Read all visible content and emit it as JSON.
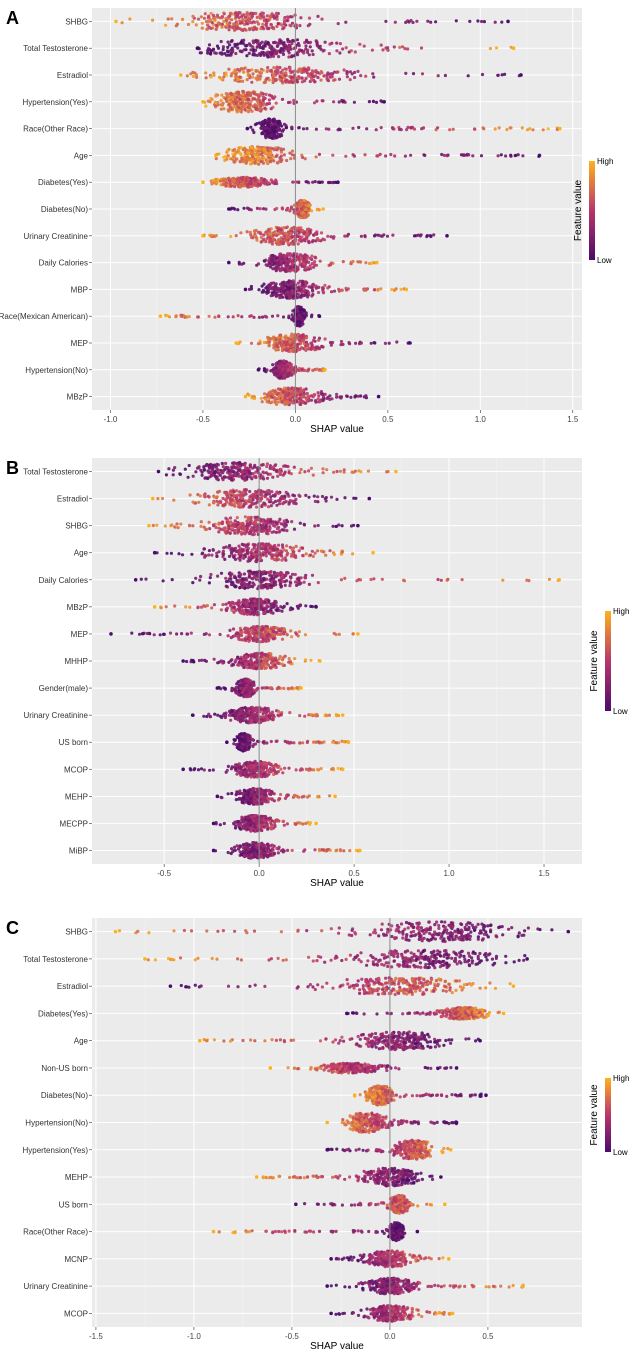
{
  "figure_title": "",
  "colors": {
    "panel_bg": "#EBEBEB",
    "grid_major": "#FFFFFF",
    "zero_line": "#888888",
    "low": "#4A0C6B",
    "mid": "#B8356E",
    "high": "#FCB31B"
  },
  "chart_data": [
    {
      "type": "beeswarm",
      "panel": "A",
      "xlabel": "SHAP value",
      "xlim": [
        -1.1,
        1.55
      ],
      "xticks": [
        -1.0,
        -0.5,
        0.0,
        0.5,
        1.0,
        1.5
      ],
      "xtick_labels": [
        "-1.0",
        "-0.5",
        "0.0",
        "0.5",
        "1.0",
        "1.5"
      ],
      "legend": {
        "title": "Feature value",
        "high": "High",
        "low": "Low"
      },
      "features": [
        {
          "name": "SHBG",
          "lo": -0.97,
          "hi": 1.15,
          "peak": -0.28,
          "w": 0.4,
          "h": 9,
          "low_side": "right"
        },
        {
          "name": "Total Testosterone",
          "lo": -0.53,
          "hi": 1.18,
          "peak": -0.12,
          "w": 0.4,
          "h": 9,
          "low_side": "left"
        },
        {
          "name": "Estradiol",
          "lo": -0.62,
          "hi": 1.22,
          "peak": -0.08,
          "w": 0.42,
          "h": 8,
          "low_side": "right"
        },
        {
          "name": "Hypertension(Yes)",
          "lo": -0.5,
          "hi": 0.48,
          "peak": -0.28,
          "w": 0.16,
          "h": 11,
          "low_side": "right"
        },
        {
          "name": "Race(Other Race)",
          "lo": -0.26,
          "hi": 1.43,
          "peak": -0.13,
          "w": 0.07,
          "h": 10,
          "low_side": "left"
        },
        {
          "name": "Age",
          "lo": -0.43,
          "hi": 1.32,
          "peak": -0.2,
          "w": 0.18,
          "h": 9,
          "low_side": "right"
        },
        {
          "name": "Diabetes(Yes)",
          "lo": -0.5,
          "hi": 0.23,
          "peak": -0.28,
          "w": 0.14,
          "h": 5,
          "low_side": "right"
        },
        {
          "name": "Diabetes(No)",
          "lo": -0.36,
          "hi": 0.15,
          "peak": 0.04,
          "w": 0.04,
          "h": 9,
          "low_side": "left"
        },
        {
          "name": "Urinary Creatinine",
          "lo": -0.5,
          "hi": 0.82,
          "peak": -0.05,
          "w": 0.18,
          "h": 9,
          "low_side": "right"
        },
        {
          "name": "Daily Calories",
          "lo": -0.36,
          "hi": 0.44,
          "peak": -0.03,
          "w": 0.15,
          "h": 9,
          "low_side": "left"
        },
        {
          "name": "MBP",
          "lo": -0.27,
          "hi": 0.6,
          "peak": -0.02,
          "w": 0.15,
          "h": 9,
          "low_side": "left"
        },
        {
          "name": "Race(Mexican American)",
          "lo": -0.73,
          "hi": 0.13,
          "peak": 0.02,
          "w": 0.03,
          "h": 10,
          "low_side": "right"
        },
        {
          "name": "MEP",
          "lo": -0.32,
          "hi": 0.62,
          "peak": -0.01,
          "w": 0.15,
          "h": 9,
          "low_side": "right"
        },
        {
          "name": "Hypertension(No)",
          "lo": -0.2,
          "hi": 0.16,
          "peak": -0.07,
          "w": 0.05,
          "h": 9,
          "low_side": "left"
        },
        {
          "name": "MBzP",
          "lo": -0.27,
          "hi": 0.45,
          "peak": -0.02,
          "w": 0.15,
          "h": 9,
          "low_side": "right"
        }
      ]
    },
    {
      "type": "beeswarm",
      "panel": "B",
      "xlabel": "SHAP value",
      "xlim": [
        -0.88,
        1.7
      ],
      "xticks": [
        -0.5,
        0.0,
        0.5,
        1.0,
        1.5
      ],
      "xtick_labels": [
        "-0.5",
        "0.0",
        "0.5",
        "1.0",
        "1.5"
      ],
      "legend": {
        "title": "Feature value",
        "high": "High",
        "low": "Low"
      },
      "features": [
        {
          "name": "Total Testosterone",
          "lo": -0.53,
          "hi": 0.72,
          "peak": -0.1,
          "w": 0.3,
          "h": 9,
          "low_side": "left"
        },
        {
          "name": "Estradiol",
          "lo": -0.56,
          "hi": 0.58,
          "peak": -0.05,
          "w": 0.25,
          "h": 9,
          "low_side": "right"
        },
        {
          "name": "SHBG",
          "lo": -0.58,
          "hi": 0.52,
          "peak": -0.05,
          "w": 0.22,
          "h": 9,
          "low_side": "right"
        },
        {
          "name": "Age",
          "lo": -0.55,
          "hi": 0.6,
          "peak": 0.0,
          "w": 0.25,
          "h": 9,
          "low_side": "left"
        },
        {
          "name": "Daily Calories",
          "lo": -0.65,
          "hi": 1.58,
          "peak": 0.0,
          "w": 0.25,
          "h": 9,
          "low_side": "left"
        },
        {
          "name": "MBzP",
          "lo": -0.55,
          "hi": 0.3,
          "peak": -0.02,
          "w": 0.14,
          "h": 8,
          "low_side": "right"
        },
        {
          "name": "MEP",
          "lo": -0.78,
          "hi": 0.52,
          "peak": 0.0,
          "w": 0.14,
          "h": 8,
          "low_side": "left"
        },
        {
          "name": "MHHP",
          "lo": -0.4,
          "hi": 0.32,
          "peak": 0.0,
          "w": 0.14,
          "h": 8,
          "low_side": "left"
        },
        {
          "name": "Gender(male)",
          "lo": -0.22,
          "hi": 0.22,
          "peak": -0.07,
          "w": 0.05,
          "h": 9,
          "low_side": "left"
        },
        {
          "name": "Urinary Creatinine",
          "lo": -0.35,
          "hi": 0.44,
          "peak": -0.03,
          "w": 0.14,
          "h": 8,
          "low_side": "left"
        },
        {
          "name": "US born",
          "lo": -0.17,
          "hi": 0.47,
          "peak": -0.08,
          "w": 0.04,
          "h": 9,
          "low_side": "left"
        },
        {
          "name": "MCOP",
          "lo": -0.4,
          "hi": 0.44,
          "peak": -0.02,
          "w": 0.12,
          "h": 8,
          "low_side": "left"
        },
        {
          "name": "MEHP",
          "lo": -0.22,
          "hi": 0.4,
          "peak": -0.02,
          "w": 0.1,
          "h": 8,
          "low_side": "left"
        },
        {
          "name": "MECPP",
          "lo": -0.24,
          "hi": 0.3,
          "peak": -0.02,
          "w": 0.1,
          "h": 8,
          "low_side": "left"
        },
        {
          "name": "MiBP",
          "lo": -0.24,
          "hi": 0.53,
          "peak": -0.02,
          "w": 0.1,
          "h": 8,
          "low_side": "left"
        }
      ]
    },
    {
      "type": "beeswarm",
      "panel": "C",
      "xlabel": "SHAP value",
      "xlim": [
        -1.52,
        0.98
      ],
      "xticks": [
        -1.5,
        -1.0,
        -0.5,
        0.0,
        0.5
      ],
      "xtick_labels": [
        "-1.5",
        "-1.0",
        "-0.5",
        "0.0",
        "0.5"
      ],
      "legend": {
        "title": "Feature value",
        "high": "High",
        "low": "Low"
      },
      "features": [
        {
          "name": "SHBG",
          "lo": -1.4,
          "hi": 0.91,
          "peak": 0.25,
          "w": 0.4,
          "h": 10,
          "low_side": "right"
        },
        {
          "name": "Total Testosterone",
          "lo": -1.25,
          "hi": 0.7,
          "peak": 0.2,
          "w": 0.4,
          "h": 9,
          "low_side": "right"
        },
        {
          "name": "Estradiol",
          "lo": -1.12,
          "hi": 0.63,
          "peak": 0.05,
          "w": 0.35,
          "h": 9,
          "low_side": "left"
        },
        {
          "name": "Diabetes(Yes)",
          "lo": -0.22,
          "hi": 0.58,
          "peak": 0.38,
          "w": 0.12,
          "h": 6,
          "low_side": "left"
        },
        {
          "name": "Age",
          "lo": -0.97,
          "hi": 0.46,
          "peak": 0.05,
          "w": 0.22,
          "h": 9,
          "low_side": "right"
        },
        {
          "name": "Non-US born",
          "lo": -0.61,
          "hi": 0.34,
          "peak": -0.2,
          "w": 0.16,
          "h": 5,
          "low_side": "right"
        },
        {
          "name": "Diabetes(No)",
          "lo": -0.18,
          "hi": 0.49,
          "peak": -0.05,
          "w": 0.06,
          "h": 10,
          "low_side": "right"
        },
        {
          "name": "Hypertension(No)",
          "lo": -0.32,
          "hi": 0.34,
          "peak": -0.12,
          "w": 0.1,
          "h": 10,
          "low_side": "right"
        },
        {
          "name": "Hypertension(Yes)",
          "lo": -0.32,
          "hi": 0.31,
          "peak": 0.12,
          "w": 0.1,
          "h": 10,
          "low_side": "left"
        },
        {
          "name": "MEHP",
          "lo": -0.68,
          "hi": 0.26,
          "peak": 0.0,
          "w": 0.14,
          "h": 9,
          "low_side": "right"
        },
        {
          "name": "US born",
          "lo": -0.48,
          "hi": 0.28,
          "peak": 0.05,
          "w": 0.05,
          "h": 9,
          "low_side": "left"
        },
        {
          "name": "Race(Other Race)",
          "lo": -0.9,
          "hi": 0.14,
          "peak": 0.03,
          "w": 0.04,
          "h": 9,
          "low_side": "right"
        },
        {
          "name": "MCNP",
          "lo": -0.3,
          "hi": 0.3,
          "peak": 0.0,
          "w": 0.12,
          "h": 8,
          "low_side": "left"
        },
        {
          "name": "Urinary Creatinine",
          "lo": -0.32,
          "hi": 0.68,
          "peak": 0.0,
          "w": 0.12,
          "h": 8,
          "low_side": "left"
        },
        {
          "name": "MCOP",
          "lo": -0.3,
          "hi": 0.32,
          "peak": 0.0,
          "w": 0.12,
          "h": 8,
          "low_side": "left"
        }
      ]
    }
  ]
}
